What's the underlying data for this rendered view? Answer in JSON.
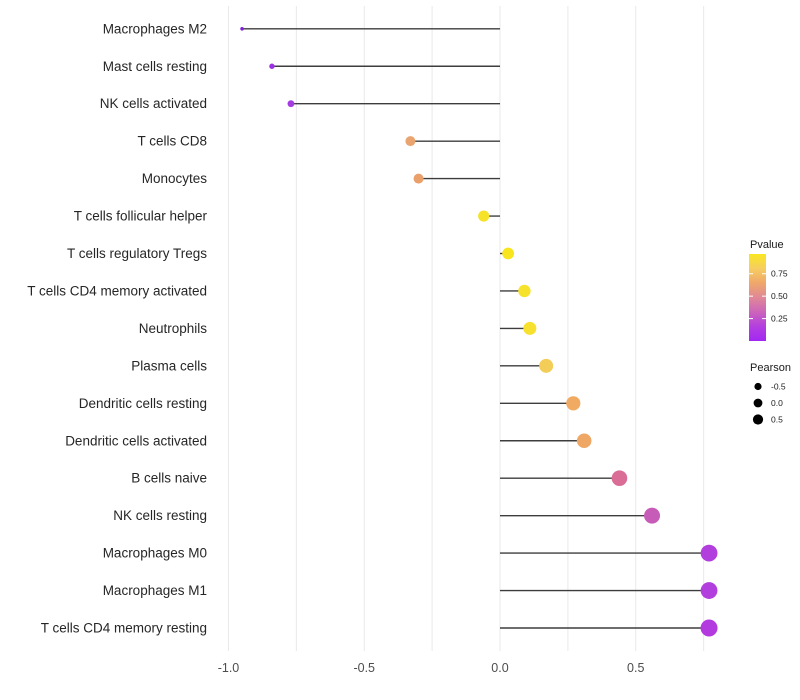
{
  "chart_data": {
    "type": "scatter",
    "variant": "lollipop",
    "orientation": "horizontal",
    "title": "",
    "xlabel": "",
    "ylabel": "",
    "xlim": [
      -1.07,
      0.86
    ],
    "baseline": 0.0,
    "grid": "vertical-only",
    "x_ticks": {
      "values": [
        -1.0,
        -0.5,
        0.0,
        0.5
      ],
      "labels": [
        "-1.0",
        "-0.5",
        "0.0",
        "0.5"
      ]
    },
    "x_gridline_values": [
      -1.0,
      -0.75,
      -0.5,
      -0.25,
      0.0,
      0.25,
      0.5,
      0.75
    ],
    "rows": [
      {
        "label": "Macrophages M2",
        "pearson": -0.95,
        "dot_color": "#7f20da",
        "dot_radius": 1.8
      },
      {
        "label": "Mast cells resting",
        "pearson": -0.84,
        "dot_color": "#9c30e5",
        "dot_radius": 2.7
      },
      {
        "label": "NK cells activated",
        "pearson": -0.77,
        "dot_color": "#a43ce2",
        "dot_radius": 3.4
      },
      {
        "label": "T cells CD8",
        "pearson": -0.33,
        "dot_color": "#e9a470",
        "dot_radius": 5.0
      },
      {
        "label": "Monocytes",
        "pearson": -0.3,
        "dot_color": "#e9a06b",
        "dot_radius": 5.0
      },
      {
        "label": "T cells follicular helper",
        "pearson": -0.06,
        "dot_color": "#f6e329",
        "dot_radius": 5.6
      },
      {
        "label": "T cells regulatory  Tregs",
        "pearson": 0.03,
        "dot_color": "#f8e51e",
        "dot_radius": 5.9
      },
      {
        "label": "T cells CD4 memory activated",
        "pearson": 0.09,
        "dot_color": "#f7e22b",
        "dot_radius": 6.2
      },
      {
        "label": "Neutrophils",
        "pearson": 0.11,
        "dot_color": "#f7e02e",
        "dot_radius": 6.5
      },
      {
        "label": "Plasma cells",
        "pearson": 0.17,
        "dot_color": "#f3cd57",
        "dot_radius": 7.0
      },
      {
        "label": "Dendritic cells resting",
        "pearson": 0.27,
        "dot_color": "#f0aa62",
        "dot_radius": 7.1
      },
      {
        "label": "Dendritic cells activated",
        "pearson": 0.31,
        "dot_color": "#efa766",
        "dot_radius": 7.3
      },
      {
        "label": "B cells naive",
        "pearson": 0.44,
        "dot_color": "#d96d96",
        "dot_radius": 7.8
      },
      {
        "label": "NK cells resting",
        "pearson": 0.56,
        "dot_color": "#c75cb8",
        "dot_radius": 8.0
      },
      {
        "label": "Macrophages M0",
        "pearson": 0.77,
        "dot_color": "#b23edd",
        "dot_radius": 8.4
      },
      {
        "label": "Macrophages M1",
        "pearson": 0.77,
        "dot_color": "#b23edd",
        "dot_radius": 8.4
      },
      {
        "label": "T cells CD4 memory resting",
        "pearson": 0.77,
        "dot_color": "#b23ade",
        "dot_radius": 8.5
      }
    ],
    "legend_pvalue": {
      "title": "Pvalue",
      "tick_labels": [
        "0.75",
        "0.50",
        "0.25"
      ],
      "tick_values": [
        0.75,
        0.5,
        0.25
      ],
      "bar_value_range": [
        0.0,
        0.97
      ],
      "gradient_top_to_bottom": [
        "#f9e721",
        "#f6cd60",
        "#efa76a",
        "#e08897",
        "#cc64bb",
        "#b33fe0",
        "#a228f2"
      ]
    },
    "legend_pearson": {
      "title": "Pearson",
      "entries": [
        {
          "label": "-0.5",
          "radius": 3.6
        },
        {
          "label": "0.0",
          "radius": 4.4
        },
        {
          "label": "0.5",
          "radius": 5.1
        }
      ]
    }
  },
  "colors": {
    "background": "#ffffff",
    "gridline": "#e9e9e9",
    "stem": "#3d3d3d",
    "axis_tick_text": "#4d4d4d",
    "category_text": "#262626",
    "legend_text": "#1a1a1a",
    "size_legend_dot": "#000000",
    "colorbar_tick": "#ffffff"
  }
}
